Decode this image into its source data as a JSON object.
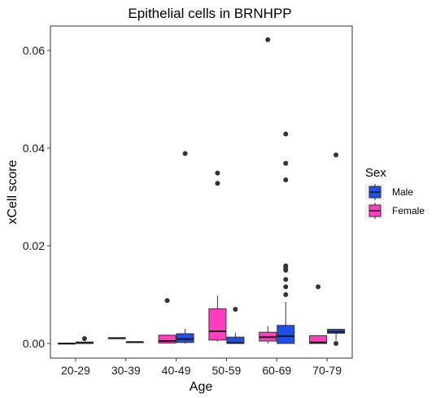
{
  "chart_data": {
    "type": "boxplot",
    "title": "Epithelial cells in BRNHPP",
    "xlabel": "Age",
    "ylabel": "xCell score",
    "ylim": [
      -0.003,
      0.065
    ],
    "yticks": [
      0,
      0.02,
      0.04,
      0.06
    ],
    "ytick_labels": [
      "0.00",
      "0.02",
      "0.04",
      "0.06"
    ],
    "categories": [
      "20-29",
      "30-39",
      "40-49",
      "50-59",
      "60-69",
      "70-79"
    ],
    "grid": false,
    "legend": {
      "title": "Sex",
      "position": "right",
      "entries": [
        {
          "name": "Male",
          "color": "#1f4fe6"
        },
        {
          "name": "Female",
          "color": "#ff3fbf"
        }
      ]
    },
    "series": [
      {
        "name": "Female",
        "color": "#ff3fbf",
        "boxes": [
          {
            "category": "20-29",
            "min": 0.0,
            "q1": 0.0,
            "median": 0.0,
            "q3": 0.0,
            "max": 0.0,
            "outliers": []
          },
          {
            "category": "30-39",
            "min": 0.0011,
            "q1": 0.0011,
            "median": 0.0011,
            "q3": 0.0011,
            "max": 0.0011,
            "outliers": []
          },
          {
            "category": "40-49",
            "min": 0.0,
            "q1": 0.0001,
            "median": 0.0005,
            "q3": 0.0017,
            "max": 0.0018,
            "outliers": [
              0.0088
            ]
          },
          {
            "category": "50-59",
            "min": 0.0004,
            "q1": 0.0007,
            "median": 0.0025,
            "q3": 0.0071,
            "max": 0.0098,
            "outliers": [
              0.0349,
              0.0328
            ]
          },
          {
            "category": "60-69",
            "min": 0.0,
            "q1": 0.0005,
            "median": 0.0013,
            "q3": 0.0023,
            "max": 0.0036,
            "outliers": [
              0.0622
            ]
          },
          {
            "category": "70-79",
            "min": 0.0,
            "q1": 0.0,
            "median": 0.0002,
            "q3": 0.0016,
            "max": 0.0016,
            "outliers": [
              0.0116
            ]
          }
        ]
      },
      {
        "name": "Male",
        "color": "#1f4fe6",
        "boxes": [
          {
            "category": "20-29",
            "min": 0.0,
            "q1": 0.0,
            "median": 0.0001,
            "q3": 0.0003,
            "max": 0.0004,
            "outliers": [
              0.001
            ]
          },
          {
            "category": "30-39",
            "min": 0.0003,
            "q1": 0.0003,
            "median": 0.0003,
            "q3": 0.0003,
            "max": 0.0003,
            "outliers": []
          },
          {
            "category": "40-49",
            "min": 0.0,
            "q1": 0.0002,
            "median": 0.0009,
            "q3": 0.002,
            "max": 0.003,
            "outliers": [
              0.0389
            ]
          },
          {
            "category": "50-59",
            "min": 0.0,
            "q1": 0.0,
            "median": 0.0001,
            "q3": 0.0013,
            "max": 0.0022,
            "outliers": [
              0.007
            ]
          },
          {
            "category": "60-69",
            "min": 0.0,
            "q1": 0.0,
            "median": 0.0015,
            "q3": 0.0037,
            "max": 0.0085,
            "outliers": [
              0.0429,
              0.0369,
              0.0335,
              0.0159,
              0.0155,
              0.015,
              0.0131,
              0.0116,
              0.01
            ]
          },
          {
            "category": "70-79",
            "min": 0.0007,
            "q1": 0.0021,
            "median": 0.0024,
            "q3": 0.0029,
            "max": 0.0029,
            "outliers": [
              0.0386,
              0.0
            ]
          }
        ]
      }
    ]
  }
}
